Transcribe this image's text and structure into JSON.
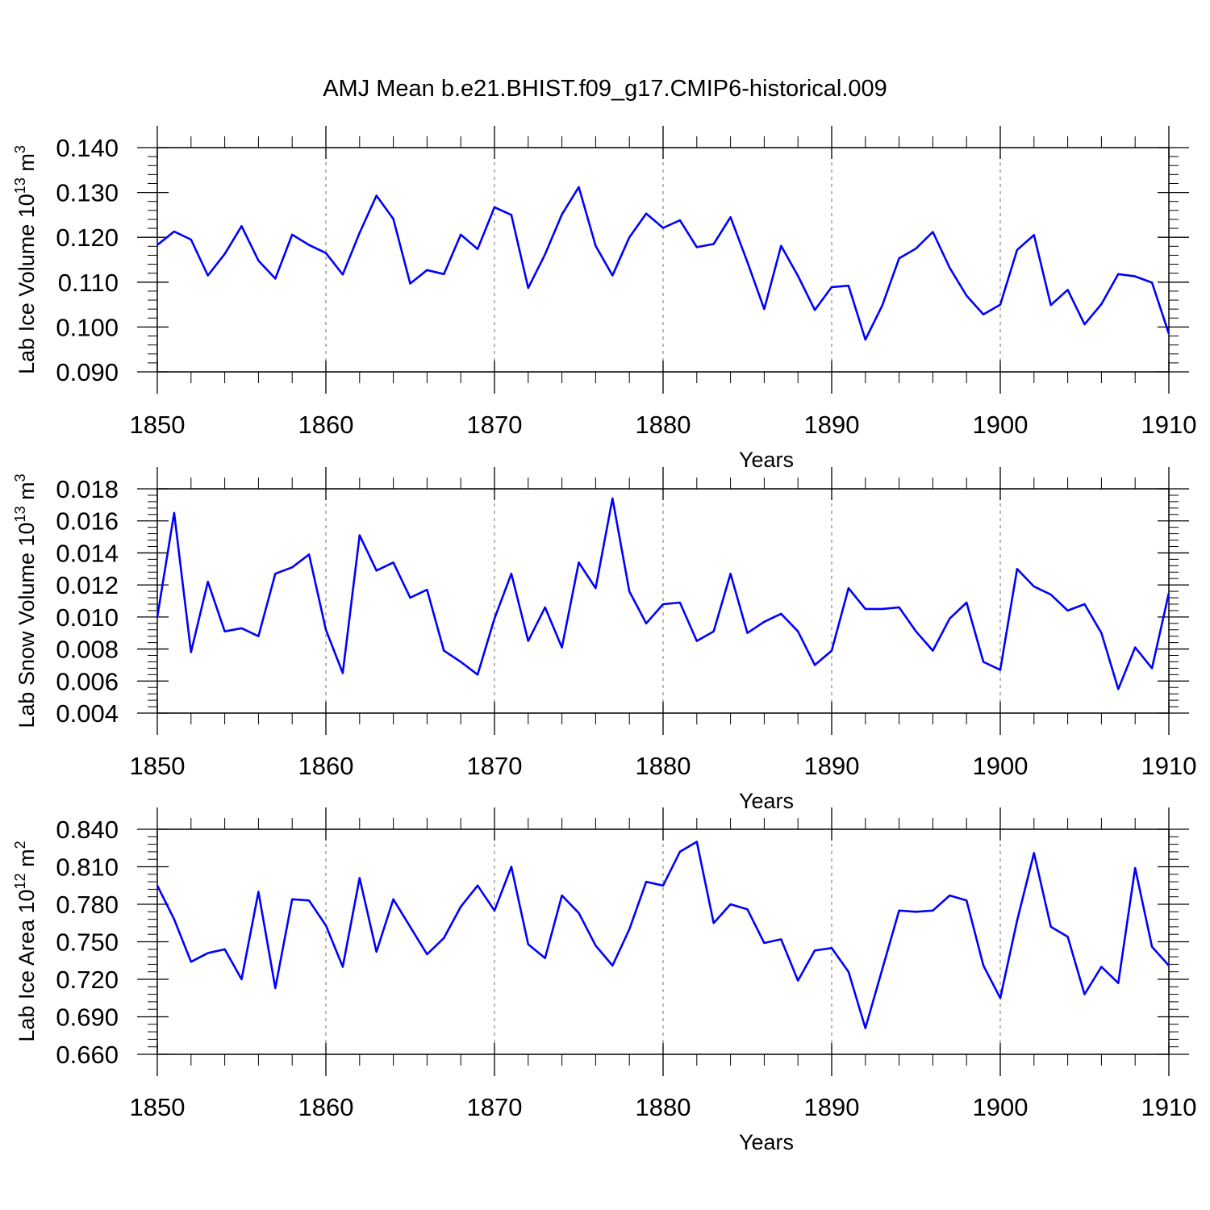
{
  "figure": {
    "title": "AMJ Mean b.e21.BHIST.f09_g17.CMIP6-historical.009"
  },
  "chart_data": [
    {
      "type": "line",
      "title": "AMJ Mean b.e21.BHIST.f09_g17.CMIP6-historical.009",
      "xlabel": "Years",
      "ylabel_main": "Lab Ice Volume 10",
      "ylabel_exp": "13",
      "ylabel_unit": " m",
      "ylabel_unit_exp": "3",
      "xlim": [
        1850,
        1910
      ],
      "ylim": [
        0.09,
        0.14
      ],
      "x_ticks": [
        "1850",
        "1860",
        "1870",
        "1880",
        "1890",
        "1900",
        "1910"
      ],
      "y_ticks": [
        "0.090",
        "0.100",
        "0.110",
        "0.120",
        "0.130",
        "0.140"
      ],
      "series": [
        {
          "name": "Lab Ice Volume",
          "color": "#0000ff",
          "x_start": 1850,
          "values": [
            0.1183,
            0.1213,
            0.1195,
            0.1115,
            0.1163,
            0.1225,
            0.1148,
            0.1108,
            0.1206,
            0.1183,
            0.1165,
            0.1117,
            0.121,
            0.1293,
            0.1241,
            0.1097,
            0.1127,
            0.1118,
            0.1206,
            0.1174,
            0.1267,
            0.125,
            0.1087,
            0.1162,
            0.1251,
            0.1312,
            0.1181,
            0.1115,
            0.12,
            0.1253,
            0.1221,
            0.1238,
            0.1178,
            0.1185,
            0.1245,
            0.1145,
            0.104,
            0.1181,
            0.1114,
            0.1038,
            0.1089,
            0.1092,
            0.0972,
            0.1048,
            0.1153,
            0.1175,
            0.1212,
            0.1132,
            0.107,
            0.1028,
            0.105,
            0.1172,
            0.1205,
            0.1049,
            0.1083,
            0.1006,
            0.1051,
            0.1118,
            0.1113,
            0.1099,
            0.0985
          ]
        }
      ]
    },
    {
      "type": "line",
      "xlabel": "Years",
      "ylabel_main": "Lab Snow Volume 10",
      "ylabel_exp": "13",
      "ylabel_unit": " m",
      "ylabel_unit_exp": "3",
      "xlim": [
        1850,
        1910
      ],
      "ylim": [
        0.004,
        0.018
      ],
      "x_ticks": [
        "1850",
        "1860",
        "1870",
        "1880",
        "1890",
        "1900",
        "1910"
      ],
      "y_ticks": [
        "0.004",
        "0.006",
        "0.008",
        "0.010",
        "0.012",
        "0.014",
        "0.016",
        "0.018"
      ],
      "series": [
        {
          "name": "Lab Snow Volume",
          "color": "#0000ff",
          "x_start": 1850,
          "values": [
            0.01,
            0.0165,
            0.0078,
            0.0122,
            0.0091,
            0.0093,
            0.0088,
            0.0127,
            0.0131,
            0.0139,
            0.0092,
            0.0065,
            0.0151,
            0.0129,
            0.0134,
            0.0112,
            0.0117,
            0.0079,
            0.0072,
            0.0064,
            0.0099,
            0.0127,
            0.0085,
            0.0106,
            0.0081,
            0.0134,
            0.0118,
            0.0174,
            0.0116,
            0.0096,
            0.0108,
            0.0109,
            0.0085,
            0.0091,
            0.0127,
            0.009,
            0.0097,
            0.0102,
            0.0091,
            0.007,
            0.0079,
            0.0118,
            0.0105,
            0.0105,
            0.0106,
            0.0091,
            0.0079,
            0.0099,
            0.0109,
            0.0072,
            0.0067,
            0.013,
            0.0119,
            0.0114,
            0.0104,
            0.0108,
            0.009,
            0.0055,
            0.0081,
            0.0068,
            0.0115
          ]
        }
      ]
    },
    {
      "type": "line",
      "xlabel": "Years",
      "ylabel_main": "Lab Ice Area 10",
      "ylabel_exp": "12",
      "ylabel_unit": " m",
      "ylabel_unit_exp": "2",
      "xlim": [
        1850,
        1910
      ],
      "ylim": [
        0.66,
        0.84
      ],
      "x_ticks": [
        "1850",
        "1860",
        "1870",
        "1880",
        "1890",
        "1900",
        "1910"
      ],
      "y_ticks": [
        "0.660",
        "0.690",
        "0.720",
        "0.750",
        "0.780",
        "0.810",
        "0.840"
      ],
      "series": [
        {
          "name": "Lab Ice Area",
          "color": "#0000ff",
          "x_start": 1850,
          "values": [
            0.795,
            0.768,
            0.734,
            0.741,
            0.744,
            0.72,
            0.79,
            0.713,
            0.784,
            0.783,
            0.763,
            0.73,
            0.801,
            0.742,
            0.784,
            0.762,
            0.74,
            0.753,
            0.778,
            0.795,
            0.775,
            0.81,
            0.748,
            0.737,
            0.787,
            0.773,
            0.747,
            0.731,
            0.76,
            0.798,
            0.795,
            0.822,
            0.83,
            0.765,
            0.78,
            0.776,
            0.749,
            0.752,
            0.719,
            0.743,
            0.745,
            0.726,
            0.681,
            0.728,
            0.775,
            0.774,
            0.775,
            0.787,
            0.783,
            0.731,
            0.705,
            0.767,
            0.821,
            0.762,
            0.754,
            0.708,
            0.73,
            0.717,
            0.809,
            0.746,
            0.731
          ]
        }
      ]
    }
  ]
}
